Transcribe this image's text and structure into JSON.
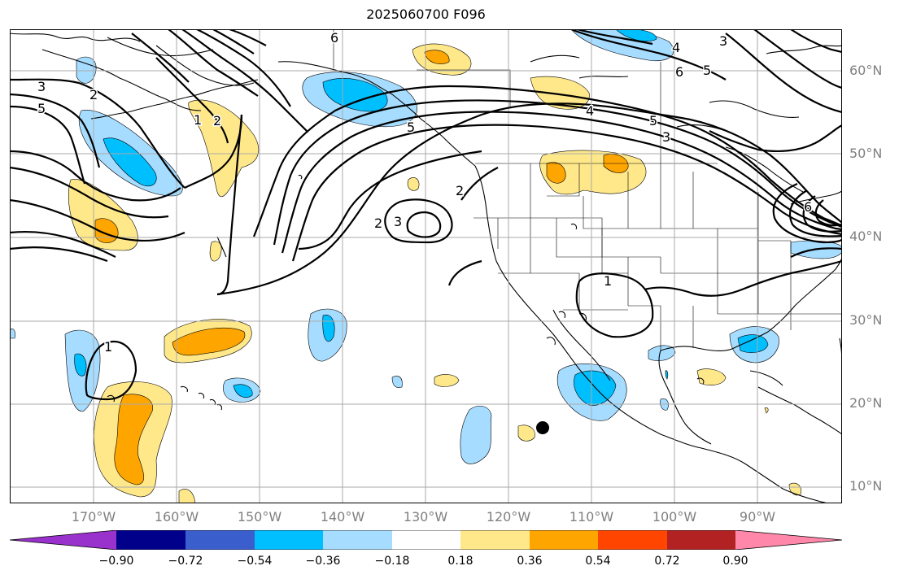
{
  "title": "2025060700 F096",
  "lat_labels": [
    "60°N",
    "50°N",
    "40°N",
    "30°N",
    "20°N",
    "10°N"
  ],
  "lon_labels": [
    "170°W",
    "160°W",
    "150°W",
    "140°W",
    "130°W",
    "120°W",
    "110°W",
    "100°W",
    "90°W"
  ],
  "colorbar": {
    "ticks": [
      "−0.90",
      "−0.72",
      "−0.54",
      "−0.36",
      "−0.18",
      "0.18",
      "0.36",
      "0.54",
      "0.72",
      "0.90"
    ],
    "colors": [
      "#9932cc",
      "#00008b",
      "#3a5fcd",
      "#00bfff",
      "#a6dcff",
      "#ffffff",
      "#ffe88a",
      "#ffa500",
      "#ff4500",
      "#b22222",
      "#ff88aa"
    ]
  },
  "contour_labels": [
    "6",
    "3",
    "5",
    "2",
    "1",
    "2",
    "5",
    "3",
    "2",
    "3",
    "2",
    "4",
    "4",
    "6",
    "5",
    "3",
    "5",
    "1",
    "1",
    "6"
  ],
  "colors": {
    "axis": "#808080",
    "grid": "#aaaaaa",
    "contour": "#000000"
  }
}
